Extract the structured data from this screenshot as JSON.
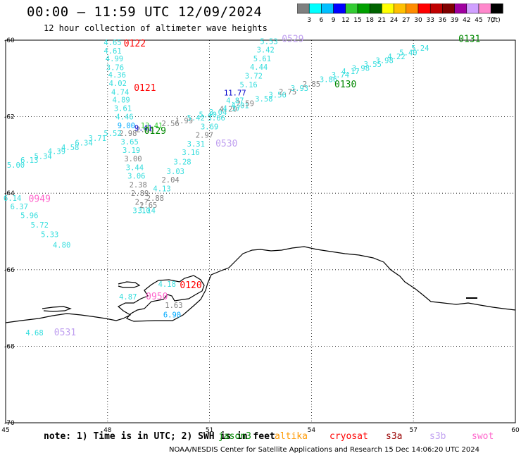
{
  "title": "00:00 – 11:59 UTC 12/09/2024",
  "subtitle": "12 hour collection of altimeter wave heights",
  "colorbar": {
    "labels": [
      "3",
      "6",
      "9",
      "12",
      "15",
      "18",
      "21",
      "24",
      "27",
      "30",
      "33",
      "36",
      "39",
      "42",
      "45",
      "70",
      "(ft)"
    ],
    "colors": [
      "#7f7f7f",
      "#00ffff",
      "#00bfff",
      "#0000ff",
      "#33cc33",
      "#00a000",
      "#006400",
      "#ffff00",
      "#ffc000",
      "#ff8c00",
      "#ff0000",
      "#c00000",
      "#800000",
      "#a000a0",
      "#d0a0ff",
      "#ff88cc",
      "#000000"
    ]
  },
  "axes": {
    "lat_labels": [
      "-60",
      "-62",
      "-64",
      "-66",
      "-68",
      "-70"
    ],
    "lon_labels": [
      "45",
      "48",
      "51",
      "54",
      "57",
      "60"
    ]
  },
  "wave_labels": [
    {
      "t": "4.65",
      "c": "#33dddd",
      "lon": 48.15,
      "lat": -60.13
    },
    {
      "t": "4.61",
      "c": "#33dddd",
      "lon": 48.15,
      "lat": -60.35
    },
    {
      "t": "4.99",
      "c": "#33dddd",
      "lon": 48.2,
      "lat": -60.55
    },
    {
      "t": "3.76",
      "c": "#33dddd",
      "lon": 48.22,
      "lat": -60.78
    },
    {
      "t": "4.36",
      "c": "#33dddd",
      "lon": 48.28,
      "lat": -60.98
    },
    {
      "t": "4.02",
      "c": "#33dddd",
      "lon": 48.3,
      "lat": -61.2
    },
    {
      "t": "4.74",
      "c": "#33dddd",
      "lon": 48.37,
      "lat": -61.43
    },
    {
      "t": "4.89",
      "c": "#33dddd",
      "lon": 48.4,
      "lat": -61.63
    },
    {
      "t": "3.61",
      "c": "#33dddd",
      "lon": 48.45,
      "lat": -61.85
    },
    {
      "t": "4.46",
      "c": "#33dddd",
      "lon": 48.5,
      "lat": -62.07
    },
    {
      "t": "9.00",
      "c": "#00aaff",
      "lon": 48.55,
      "lat": -62.3
    },
    {
      "t": "2.98",
      "c": "#808080",
      "lon": 48.6,
      "lat": -62.5
    },
    {
      "t": "3.65",
      "c": "#33dddd",
      "lon": 48.65,
      "lat": -62.73
    },
    {
      "t": "3.19",
      "c": "#33dddd",
      "lon": 48.7,
      "lat": -62.95
    },
    {
      "t": "3.00",
      "c": "#808080",
      "lon": 48.75,
      "lat": -63.17
    },
    {
      "t": "3.44",
      "c": "#33dddd",
      "lon": 48.8,
      "lat": -63.4
    },
    {
      "t": "3.06",
      "c": "#33dddd",
      "lon": 48.85,
      "lat": -63.62
    },
    {
      "t": "2.38",
      "c": "#808080",
      "lon": 48.9,
      "lat": -63.85
    },
    {
      "t": "2.89",
      "c": "#808080",
      "lon": 48.95,
      "lat": -64.07
    },
    {
      "t": "2.?",
      "c": "#808080",
      "lon": 49.0,
      "lat": -64.3
    },
    {
      "t": "3.10",
      "c": "#33dddd",
      "lon": 49.0,
      "lat": -64.52
    },
    {
      "t": "5.00",
      "c": "#33dddd",
      "lon": 45.3,
      "lat": -63.33
    },
    {
      "t": "6.13",
      "c": "#33dddd",
      "lon": 45.7,
      "lat": -63.2
    },
    {
      "t": "5.34",
      "c": "#33dddd",
      "lon": 46.1,
      "lat": -63.1
    },
    {
      "t": "4.39",
      "c": "#33dddd",
      "lon": 46.5,
      "lat": -62.97
    },
    {
      "t": "4.58",
      "c": "#33dddd",
      "lon": 46.9,
      "lat": -62.87
    },
    {
      "t": "6.34",
      "c": "#33dddd",
      "lon": 47.3,
      "lat": -62.75
    },
    {
      "t": "3.71",
      "c": "#33dddd",
      "lon": 47.7,
      "lat": -62.63
    },
    {
      "t": "5.52",
      "c": "#33dddd",
      "lon": 48.15,
      "lat": -62.5
    },
    {
      "t": "2.56",
      "c": "#808080",
      "lon": 49.1,
      "lat": -62.4
    },
    {
      "t": "9.41",
      "c": "#0000cc",
      "lon": 49.05,
      "lat": -62.37
    },
    {
      "t": "13.41",
      "c": "#33cc33",
      "lon": 49.3,
      "lat": -62.3
    },
    {
      "t": "2.56",
      "c": "#808080",
      "lon": 49.85,
      "lat": -62.25
    },
    {
      "t": "1.99",
      "c": "#808080",
      "lon": 50.25,
      "lat": -62.17
    },
    {
      "t": "5.42",
      "c": "#33dddd",
      "lon": 50.6,
      "lat": -62.1
    },
    {
      "t": "5.40",
      "c": "#33dddd",
      "lon": 50.95,
      "lat": -62.02
    },
    {
      "t": "3.04",
      "c": "#33dddd",
      "lon": 51.25,
      "lat": -61.95
    },
    {
      "t": "4.20",
      "c": "#808080",
      "lon": 51.55,
      "lat": -61.87
    },
    {
      "t": "4.01",
      "c": "#33dddd",
      "lon": 51.9,
      "lat": -61.78
    },
    {
      "t": "3.58",
      "c": "#33dddd",
      "lon": 52.6,
      "lat": -61.6
    },
    {
      "t": "3.56",
      "c": "#33dddd",
      "lon": 53.0,
      "lat": -61.5
    },
    {
      "t": "2.75",
      "c": "#808080",
      "lon": 53.3,
      "lat": -61.42
    },
    {
      "t": "3.93",
      "c": "#33dddd",
      "lon": 53.65,
      "lat": -61.33
    },
    {
      "t": "2.85",
      "c": "#808080",
      "lon": 54.0,
      "lat": -61.22
    },
    {
      "t": "3.86",
      "c": "#33dddd",
      "lon": 54.5,
      "lat": -61.1
    },
    {
      "t": "3.74",
      "c": "#33dddd",
      "lon": 54.85,
      "lat": -60.98
    },
    {
      "t": "4.17",
      "c": "#33dddd",
      "lon": 55.15,
      "lat": -60.88
    },
    {
      "t": "3.98",
      "c": "#33dddd",
      "lon": 55.45,
      "lat": -60.8
    },
    {
      "t": "3.55",
      "c": "#33dddd",
      "lon": 55.8,
      "lat": -60.7
    },
    {
      "t": "3.98",
      "c": "#33dddd",
      "lon": 56.15,
      "lat": -60.6
    },
    {
      "t": "4.22",
      "c": "#33dddd",
      "lon": 56.5,
      "lat": -60.5
    },
    {
      "t": "5.40",
      "c": "#33dddd",
      "lon": 56.85,
      "lat": -60.4
    },
    {
      "t": "5.24",
      "c": "#33dddd",
      "lon": 57.2,
      "lat": -60.28
    },
    {
      "t": "5.53",
      "c": "#33dddd",
      "lon": 52.75,
      "lat": -60.1
    },
    {
      "t": "3.42",
      "c": "#33dddd",
      "lon": 52.65,
      "lat": -60.32
    },
    {
      "t": "5.61",
      "c": "#33dddd",
      "lon": 52.55,
      "lat": -60.55
    },
    {
      "t": "4.44",
      "c": "#33dddd",
      "lon": 52.45,
      "lat": -60.77
    },
    {
      "t": "3.72",
      "c": "#33dddd",
      "lon": 52.3,
      "lat": -61.0
    },
    {
      "t": "5.16",
      "c": "#33dddd",
      "lon": 52.15,
      "lat": -61.23
    },
    {
      "t": "11.77",
      "c": "#0000cc",
      "lon": 51.75,
      "lat": -61.45
    },
    {
      "t": "4.87",
      "c": "#33dddd",
      "lon": 51.75,
      "lat": -61.65
    },
    {
      "t": "2.59",
      "c": "#808080",
      "lon": 52.05,
      "lat": -61.72
    },
    {
      "t": "4.37",
      "c": "#33dddd",
      "lon": 51.65,
      "lat": -61.85
    },
    {
      "t": "3.66",
      "c": "#33dddd",
      "lon": 51.2,
      "lat": -62.1
    },
    {
      "t": "3.69",
      "c": "#33dddd",
      "lon": 51.0,
      "lat": -62.33
    },
    {
      "t": "2.97",
      "c": "#808080",
      "lon": 50.85,
      "lat": -62.55
    },
    {
      "t": "3.31",
      "c": "#33dddd",
      "lon": 50.6,
      "lat": -62.78
    },
    {
      "t": "3.16",
      "c": "#33dddd",
      "lon": 50.45,
      "lat": -63.0
    },
    {
      "t": "3.28",
      "c": "#33dddd",
      "lon": 50.2,
      "lat": -63.25
    },
    {
      "t": "3.03",
      "c": "#33dddd",
      "lon": 50.0,
      "lat": -63.5
    },
    {
      "t": "2.04",
      "c": "#808080",
      "lon": 49.85,
      "lat": -63.72
    },
    {
      "t": "4.13",
      "c": "#33dddd",
      "lon": 49.6,
      "lat": -63.95
    },
    {
      "t": "2.88",
      "c": "#808080",
      "lon": 49.4,
      "lat": -64.2
    },
    {
      "t": "2.65",
      "c": "#808080",
      "lon": 49.2,
      "lat": -64.38
    },
    {
      "t": "3.14",
      "c": "#33dddd",
      "lon": 49.15,
      "lat": -64.52
    },
    {
      "t": "6.14",
      "c": "#33dddd",
      "lon": 45.2,
      "lat": -64.2
    },
    {
      "t": "6.37",
      "c": "#33dddd",
      "lon": 45.4,
      "lat": -64.42
    },
    {
      "t": "5.96",
      "c": "#33dddd",
      "lon": 45.7,
      "lat": -64.65
    },
    {
      "t": "5.72",
      "c": "#33dddd",
      "lon": 46.0,
      "lat": -64.9
    },
    {
      "t": "5.33",
      "c": "#33dddd",
      "lon": 46.3,
      "lat": -65.15
    },
    {
      "t": "4.80",
      "c": "#33dddd",
      "lon": 46.65,
      "lat": -65.42
    },
    {
      "t": "4.18",
      "c": "#33dddd",
      "lon": 49.75,
      "lat": -66.45
    },
    {
      "t": "4.87",
      "c": "#33dddd",
      "lon": 48.6,
      "lat": -66.78
    },
    {
      "t": "1.63",
      "c": "#808080",
      "lon": 49.95,
      "lat": -67.0
    },
    {
      "t": "6.90",
      "c": "#00aaff",
      "lon": 49.9,
      "lat": -67.25
    },
    {
      "t": "4.68",
      "c": "#33dddd",
      "lon": 45.85,
      "lat": -67.72
    }
  ],
  "time_labels": [
    {
      "t": "0122",
      "c": "#ff0000",
      "lon": 48.8,
      "lat": -60.17
    },
    {
      "t": "0121",
      "c": "#ff0000",
      "lon": 49.1,
      "lat": -61.33
    },
    {
      "t": "0129",
      "c": "#008800",
      "lon": 49.4,
      "lat": -62.45
    },
    {
      "t": "0529",
      "c": "#c0a0f0",
      "lon": 53.45,
      "lat": -60.05
    },
    {
      "t": "0131",
      "c": "#008800",
      "lon": 58.65,
      "lat": -60.05
    },
    {
      "t": "0130",
      "c": "#008800",
      "lon": 55.0,
      "lat": -61.23
    },
    {
      "t": "0530",
      "c": "#c0a0f0",
      "lon": 51.5,
      "lat": -62.78
    },
    {
      "t": "0949",
      "c": "#ff66cc",
      "lon": 46.0,
      "lat": -64.23
    },
    {
      "t": "0120",
      "c": "#ff0000",
      "lon": 50.45,
      "lat": -66.48
    },
    {
      "t": "0950",
      "c": "#ff66cc",
      "lon": 49.45,
      "lat": -66.78
    },
    {
      "t": "0531",
      "c": "#c0a0f0",
      "lon": 46.75,
      "lat": -67.72
    }
  ],
  "note": {
    "text": "note: 1) Time is in UTC; 2) SWH is in feet",
    "satellites": [
      {
        "name": "jason3",
        "c": "#008800"
      },
      {
        "name": "altika",
        "c": "#ff9900"
      },
      {
        "name": "cryosat",
        "c": "#ff0000"
      },
      {
        "name": "s3a",
        "c": "#990000"
      },
      {
        "name": "s3b",
        "c": "#c0a0f0"
      },
      {
        "name": "swot",
        "c": "#ff66cc"
      }
    ]
  },
  "credit": "NOAA/NESDIS Center for Satellite Applications and Research    15 Dec 14:06:20 UTC 2024"
}
